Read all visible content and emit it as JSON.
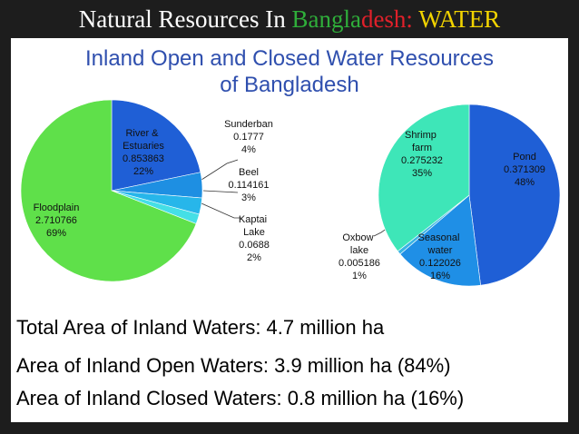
{
  "header": {
    "title": [
      {
        "text": "Natural Resources In ",
        "color": "#ffffff"
      },
      {
        "text": "Bangla",
        "color": "#2fae3a"
      },
      {
        "text": "desh:",
        "color": "#e0202a"
      },
      {
        "text": " WATER",
        "color": "#f2d400"
      }
    ]
  },
  "subtitle": [
    "Inland Open and Closed Water Resources",
    "of Bangladesh"
  ],
  "chart_data": [
    {
      "type": "pie",
      "categories": [
        "River & Estuaries",
        "Sunderban",
        "Beel",
        "Kaptai Lake",
        "Floodplain"
      ],
      "values": [
        0.853863,
        0.1777,
        0.114161,
        0.0688,
        2.710766
      ],
      "percent_labels": [
        "22%",
        "4%",
        "3%",
        "2%",
        "69%"
      ],
      "colors": [
        "#1f5fd6",
        "#1e8fe2",
        "#27b6ea",
        "#45dfe6",
        "#5fe04a"
      ]
    },
    {
      "type": "pie",
      "categories": [
        "Pond",
        "Seasonal water",
        "Oxbow lake",
        "Shrimp farm"
      ],
      "values": [
        0.371309,
        0.122026,
        0.005186,
        0.275232
      ],
      "percent_labels": [
        "48%",
        "16%",
        "1%",
        "35%"
      ],
      "colors": [
        "#1f5fd6",
        "#1f8fe6",
        "#3ab4e4",
        "#3ee6b8"
      ]
    }
  ],
  "summary": [
    "Total Area of Inland Waters: 4.7 million ha",
    "Area of Inland Open Waters: 3.9 million ha (84%)",
    "Area of Inland Closed Waters: 0.8 million ha (16%)"
  ]
}
